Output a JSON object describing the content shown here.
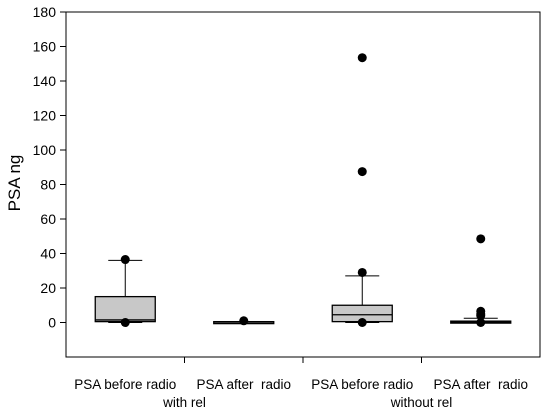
{
  "chart_data": {
    "type": "box",
    "ylabel": "PSA ng",
    "ylim": [
      -20,
      180
    ],
    "yticks": [
      0,
      20,
      40,
      60,
      80,
      100,
      120,
      140,
      160,
      180
    ],
    "categories": [
      "PSA before radio",
      "PSA after  radio",
      "PSA before radio",
      "PSA after  radio"
    ],
    "group_labels": [
      "with rel",
      "without rel"
    ],
    "boxes": [
      {
        "q1": 0.5,
        "median": 1.5,
        "q3": 15,
        "whisker_low": 0,
        "whisker_high": 36,
        "outliers": [
          36.5,
          0
        ]
      },
      {
        "q1": 0,
        "median": 0.2,
        "q3": 0.5,
        "whisker_low": 0,
        "whisker_high": 0.6,
        "outliers": [
          1
        ]
      },
      {
        "q1": 0.5,
        "median": 4.5,
        "q3": 10,
        "whisker_low": 0,
        "whisker_high": 27,
        "outliers": [
          153.5,
          87.5,
          29,
          0
        ]
      },
      {
        "q1": 0,
        "median": 0.3,
        "q3": 0.8,
        "whisker_low": 0,
        "whisker_high": 2.5,
        "outliers": [
          48.5,
          6.5,
          5,
          4,
          0
        ]
      }
    ],
    "box_color": "#c8c8c8",
    "grid": false
  }
}
